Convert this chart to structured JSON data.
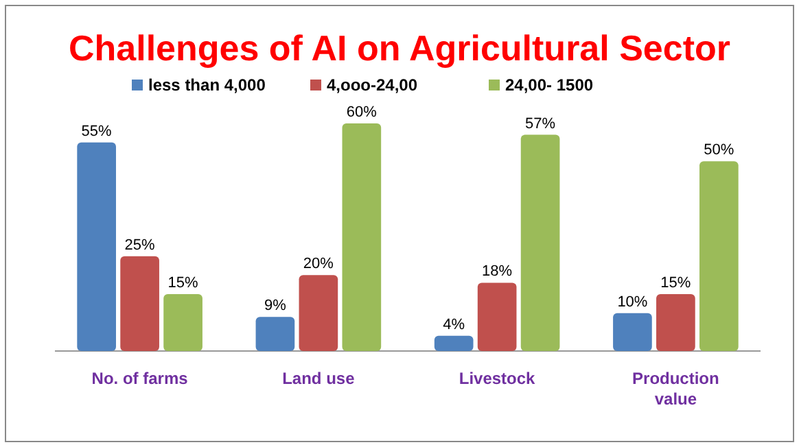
{
  "chart_data": {
    "type": "bar",
    "title": "Challenges of AI on Agricultural Sector",
    "categories": [
      "No. of farms",
      "Land use",
      "Livestock",
      "Production value"
    ],
    "series": [
      {
        "name": "less than 4,000",
        "color": "#4f81bd",
        "values": [
          55,
          9,
          4,
          10
        ],
        "value_labels": [
          "55%",
          "9%",
          "4%",
          "10%"
        ]
      },
      {
        "name": "4,ooo-24,00",
        "color": "#c0504d",
        "values": [
          25,
          20,
          18,
          15
        ],
        "value_labels": [
          "25%",
          "20%",
          "18%",
          "15%"
        ]
      },
      {
        "name": "24,00- 1500",
        "color": "#9bbb59",
        "values": [
          15,
          60,
          57,
          50
        ],
        "value_labels": [
          "15%",
          "60%",
          "57%",
          "50%"
        ]
      }
    ],
    "legend": "top"
  }
}
